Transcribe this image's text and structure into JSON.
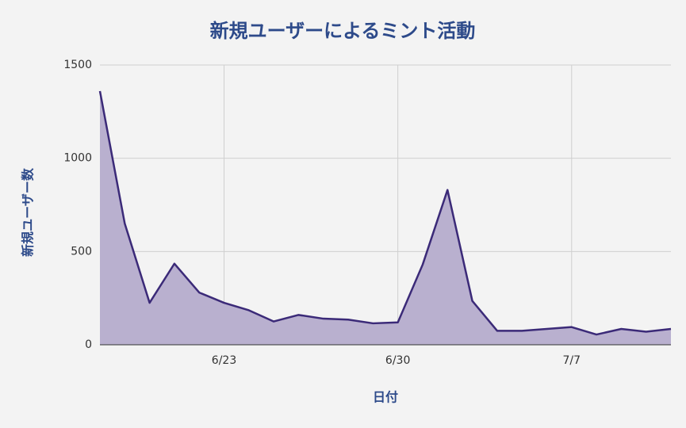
{
  "chart_data": {
    "type": "area",
    "title": "新規ユーザーによるミント活動",
    "x_label": "日付",
    "y_label": "新規ユーザー数",
    "x": [
      "6/18",
      "6/19",
      "6/20",
      "6/21",
      "6/22",
      "6/23",
      "6/24",
      "6/25",
      "6/26",
      "6/27",
      "6/28",
      "6/29",
      "6/30",
      "7/1",
      "7/2",
      "7/3",
      "7/4",
      "7/5",
      "7/6",
      "7/7",
      "7/8",
      "7/9",
      "7/10",
      "7/11"
    ],
    "values": [
      1360,
      650,
      225,
      435,
      280,
      225,
      185,
      125,
      160,
      140,
      135,
      115,
      120,
      430,
      830,
      235,
      75,
      75,
      85,
      95,
      55,
      85,
      70,
      85
    ],
    "xticks": [
      "6/23",
      "6/30",
      "7/7"
    ],
    "ylim": [
      0,
      1500
    ],
    "yticks": [
      0,
      500,
      1000,
      1500
    ],
    "color": "#3b2a78",
    "fill": "#b9b0cf",
    "grid": true
  }
}
